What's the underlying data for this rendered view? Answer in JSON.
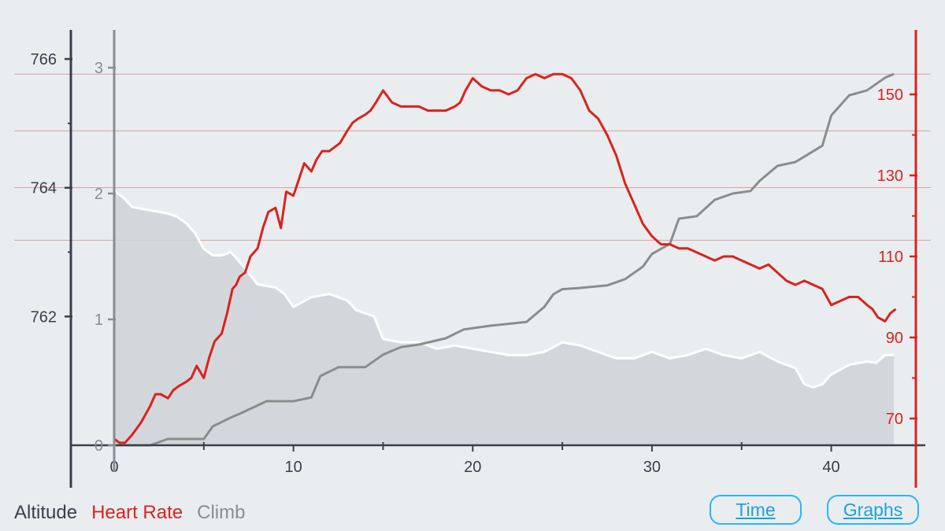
{
  "colors": {
    "background": "#e9edf0",
    "altitude_axis": "#3a3f4a",
    "climb_axis": "#8a8d91",
    "heart_rate": "#d9231c",
    "climb_line": "#8c8c8c",
    "altitude_fill": "#cfd2d8",
    "altitude_line": "#ffffff",
    "gridline": "#d9a0a0",
    "button": "#29b6f6"
  },
  "legend": {
    "altitude": "Altitude",
    "heart_rate": "Heart Rate",
    "climb": "Climb"
  },
  "buttons": {
    "time": "Time",
    "graphs": "Graphs"
  },
  "chart_data": {
    "type": "line",
    "x_axis": {
      "ticks": [
        0,
        10,
        20,
        30,
        40
      ],
      "range": [
        0,
        44.5
      ]
    },
    "axes": {
      "altitude": {
        "ticks": [
          762,
          764,
          766
        ],
        "range": [
          760.0,
          766.3
        ]
      },
      "climb": {
        "ticks": [
          0,
          1,
          2,
          3
        ],
        "range": [
          0,
          3.35
        ]
      },
      "heart_rate": {
        "ticks": [
          70,
          90,
          110,
          130,
          150
        ],
        "range": [
          63,
          163
        ]
      }
    },
    "grid": {
      "horizontal": [
        155,
        141,
        127,
        114
      ],
      "on_axis": "heart_rate"
    },
    "series": [
      {
        "key": "heart_rate",
        "axis": "heart_rate",
        "x": [
          0,
          0.3,
          0.6,
          1,
          1.5,
          2,
          2.3,
          2.6,
          3,
          3.3,
          3.6,
          4,
          4.3,
          4.6,
          5,
          5.3,
          5.6,
          6,
          6.3,
          6.6,
          6.8,
          7,
          7.3,
          7.6,
          8,
          8.3,
          8.6,
          9,
          9.3,
          9.6,
          10,
          10.3,
          10.6,
          11,
          11.3,
          11.6,
          12,
          12.3,
          12.6,
          13,
          13.3,
          13.6,
          14,
          14.3,
          14.6,
          15,
          15.5,
          16,
          16.5,
          17,
          17.5,
          18,
          18.5,
          19,
          19.3,
          19.6,
          20,
          20.5,
          21,
          21.5,
          22,
          22.5,
          23,
          23.5,
          24,
          24.5,
          25,
          25.5,
          26,
          26.5,
          27,
          27.5,
          28,
          28.5,
          29,
          29.5,
          30,
          30.5,
          31,
          31.5,
          32,
          32.5,
          33,
          33.5,
          34,
          34.5,
          35,
          35.5,
          36,
          36.5,
          37,
          37.5,
          38,
          38.5,
          39,
          39.5,
          40,
          40.5,
          41,
          41.5,
          42,
          42.3,
          42.6,
          43,
          43.3,
          43.6
        ],
        "y": [
          65,
          64,
          64,
          66,
          69,
          73,
          76,
          76,
          75,
          77,
          78,
          79,
          80,
          83,
          80,
          85,
          89,
          91,
          96,
          102,
          103,
          105,
          106,
          110,
          112,
          117,
          121,
          122,
          117,
          126,
          125,
          129,
          133,
          131,
          134,
          136,
          136,
          137,
          138,
          141,
          143,
          144,
          145,
          146,
          148,
          151,
          148,
          147,
          147,
          147,
          146,
          146,
          146,
          147,
          148,
          151,
          154,
          152,
          151,
          151,
          150,
          151,
          154,
          155,
          154,
          155,
          155,
          154,
          151,
          146,
          144,
          140,
          135,
          128,
          123,
          118,
          115,
          113,
          113,
          112,
          112,
          111,
          110,
          109,
          110,
          110,
          109,
          108,
          107,
          108,
          106,
          104,
          103,
          104,
          103,
          102,
          98,
          99,
          100,
          100,
          98,
          97,
          95,
          94,
          96,
          97
        ]
      },
      {
        "key": "climb",
        "axis": "climb",
        "x": [
          0,
          2,
          3,
          5,
          5.5,
          6.5,
          7,
          8.5,
          10,
          11,
          11.5,
          12.5,
          14,
          15,
          16,
          17,
          18.5,
          19.5,
          21,
          23,
          24,
          24.5,
          25,
          26,
          27.5,
          28.5,
          29.5,
          30,
          31,
          31.5,
          32.5,
          33.5,
          34.5,
          35.5,
          36,
          37,
          38,
          39.5,
          40,
          40.5,
          41,
          42,
          43,
          43.5
        ],
        "y": [
          0,
          0,
          0.05,
          0.05,
          0.15,
          0.22,
          0.25,
          0.35,
          0.35,
          0.38,
          0.55,
          0.62,
          0.62,
          0.72,
          0.78,
          0.8,
          0.85,
          0.92,
          0.95,
          0.98,
          1.1,
          1.2,
          1.24,
          1.25,
          1.27,
          1.32,
          1.42,
          1.52,
          1.6,
          1.8,
          1.82,
          1.95,
          2,
          2.02,
          2.1,
          2.22,
          2.25,
          2.38,
          2.62,
          2.7,
          2.78,
          2.82,
          2.92,
          2.95
        ]
      },
      {
        "key": "altitude",
        "axis": "altitude",
        "x": [
          0,
          0.5,
          1,
          2,
          3,
          3.5,
          4,
          4.5,
          5,
          5.5,
          6,
          6.5,
          7,
          8,
          9,
          9.5,
          10,
          11,
          12,
          13,
          13.5,
          14,
          14.5,
          15,
          16,
          17,
          18,
          19,
          20,
          21,
          22,
          23,
          24,
          25,
          26,
          27,
          28,
          29,
          30,
          31,
          32,
          33,
          34,
          35,
          36,
          37,
          38,
          38.5,
          39,
          39.5,
          40,
          41,
          42,
          42.5,
          43,
          43.5
        ],
        "y": [
          763.95,
          763.85,
          763.7,
          763.65,
          763.6,
          763.55,
          763.45,
          763.3,
          763.05,
          762.95,
          762.95,
          763.0,
          762.85,
          762.5,
          762.45,
          762.35,
          762.15,
          762.3,
          762.35,
          762.25,
          762.1,
          762.05,
          762.0,
          761.65,
          761.6,
          761.6,
          761.5,
          761.55,
          761.5,
          761.45,
          761.4,
          761.4,
          761.45,
          761.6,
          761.55,
          761.45,
          761.35,
          761.35,
          761.45,
          761.35,
          761.4,
          761.5,
          761.4,
          761.35,
          761.45,
          761.3,
          761.2,
          760.95,
          760.9,
          760.95,
          761.1,
          761.25,
          761.3,
          761.28,
          761.4,
          761.4
        ]
      }
    ]
  }
}
